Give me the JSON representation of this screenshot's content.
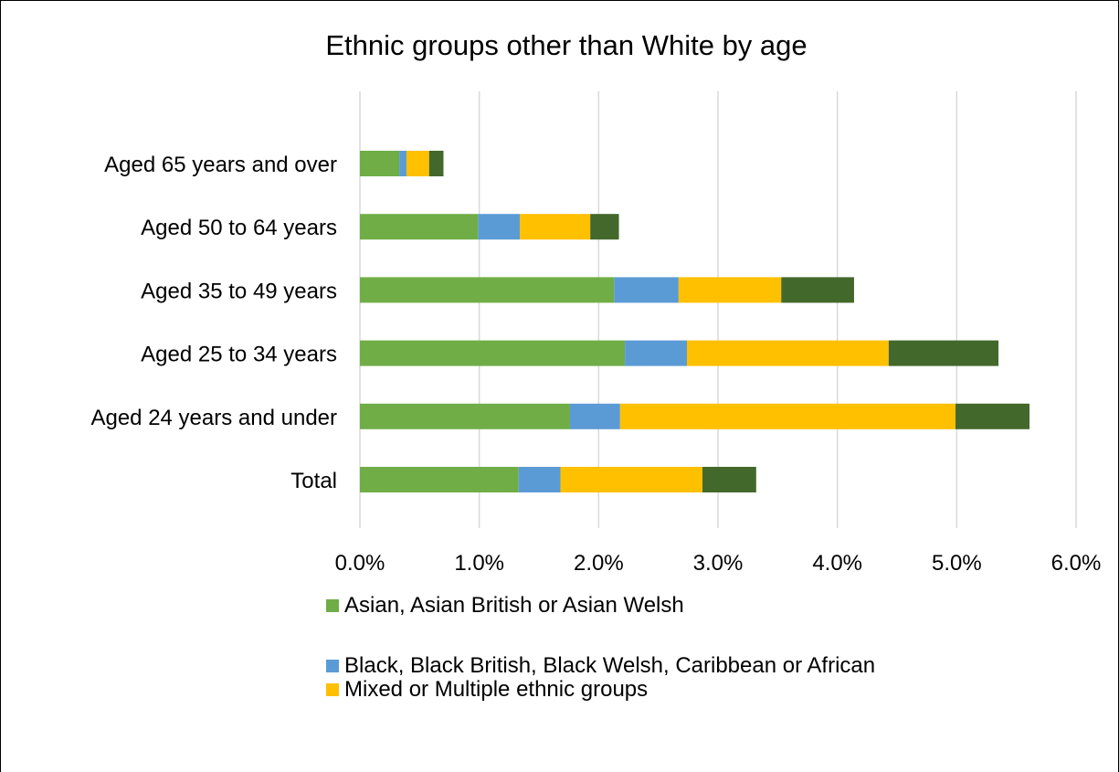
{
  "chart_data": {
    "type": "bar",
    "orientation": "horizontal",
    "stacked": true,
    "title": "Ethnic groups other than White by age",
    "categories": [
      "Aged 65 years and over",
      "Aged 50 to 64 years",
      "Aged 35 to 49 years",
      "Aged 25 to 34 years",
      "Aged 24 years and under",
      "Total"
    ],
    "series": [
      {
        "name": "Asian, Asian British or Asian Welsh",
        "color": "#70ad47",
        "values": [
          0.33,
          0.99,
          2.13,
          2.22,
          1.76,
          1.33
        ]
      },
      {
        "name": "Black, Black British, Black Welsh, Caribbean or African",
        "color": "#5b9bd5",
        "values": [
          0.06,
          0.35,
          0.54,
          0.52,
          0.42,
          0.35
        ]
      },
      {
        "name": "Mixed or Multiple ethnic groups",
        "color": "#ffc000",
        "values": [
          0.19,
          0.59,
          0.86,
          1.69,
          2.81,
          1.19
        ]
      },
      {
        "name": "",
        "color": "#43682b",
        "values": [
          0.12,
          0.24,
          0.61,
          0.92,
          0.62,
          0.45
        ]
      }
    ],
    "xlim": [
      0,
      6
    ],
    "xticks": [
      "0.0%",
      "1.0%",
      "2.0%",
      "3.0%",
      "4.0%",
      "5.0%",
      "6.0%"
    ],
    "grid": "vertical",
    "legend_position": "bottom"
  }
}
